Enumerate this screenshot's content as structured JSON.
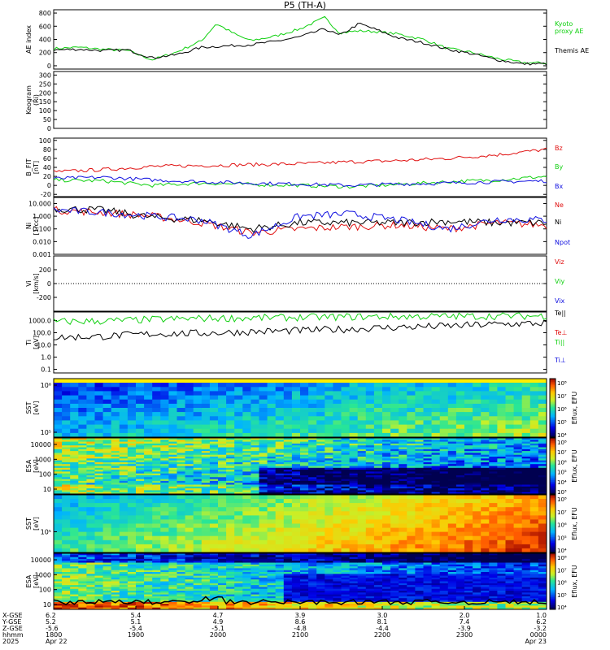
{
  "title": "P5 (TH-A)",
  "colors": {
    "black": "#000000",
    "red": "#e01010",
    "green": "#10d010",
    "blue": "#1010e0"
  },
  "chart_data": [
    {
      "type": "line",
      "ylabel": "AE index",
      "yticks": [
        "0",
        "200",
        "400",
        "600",
        "800"
      ],
      "ylim": [
        -50,
        850
      ],
      "series": [
        {
          "name": "Kyoto proxy AE",
          "color": "green",
          "values": [
            [
              0,
              260
            ],
            [
              0.05,
              280
            ],
            [
              0.1,
              250
            ],
            [
              0.15,
              230
            ],
            [
              0.2,
              90
            ],
            [
              0.25,
              210
            ],
            [
              0.3,
              380
            ],
            [
              0.33,
              640
            ],
            [
              0.37,
              470
            ],
            [
              0.4,
              380
            ],
            [
              0.45,
              450
            ],
            [
              0.5,
              560
            ],
            [
              0.55,
              730
            ],
            [
              0.58,
              500
            ],
            [
              0.62,
              530
            ],
            [
              0.65,
              520
            ],
            [
              0.7,
              480
            ],
            [
              0.75,
              400
            ],
            [
              0.8,
              260
            ],
            [
              0.85,
              200
            ],
            [
              0.9,
              110
            ],
            [
              0.95,
              50
            ],
            [
              1,
              40
            ]
          ]
        },
        {
          "name": "Themis AE",
          "color": "black",
          "values": [
            [
              0,
              240
            ],
            [
              0.05,
              250
            ],
            [
              0.1,
              230
            ],
            [
              0.15,
              240
            ],
            [
              0.2,
              120
            ],
            [
              0.25,
              170
            ],
            [
              0.3,
              280
            ],
            [
              0.35,
              300
            ],
            [
              0.4,
              320
            ],
            [
              0.45,
              370
            ],
            [
              0.5,
              440
            ],
            [
              0.55,
              560
            ],
            [
              0.58,
              460
            ],
            [
              0.62,
              640
            ],
            [
              0.65,
              560
            ],
            [
              0.7,
              420
            ],
            [
              0.75,
              350
            ],
            [
              0.8,
              250
            ],
            [
              0.85,
              180
            ],
            [
              0.9,
              90
            ],
            [
              0.95,
              30
            ],
            [
              1,
              30
            ]
          ]
        }
      ],
      "legend": [
        "Kyoto",
        "proxy AE",
        "Themis AE"
      ]
    },
    {
      "type": "line",
      "ylabel": "Keogram",
      "ylabel2": "(Ri)",
      "yticks": [
        "0",
        "50",
        "100",
        "150",
        "200",
        "250",
        "300"
      ],
      "ylim": [
        0,
        320
      ],
      "series": []
    },
    {
      "type": "line",
      "ylabel": "B_FIT",
      "ylabel2": "[nT]",
      "yticks": [
        "-20",
        "0",
        "20",
        "40",
        "60",
        "80",
        "100"
      ],
      "ylim": [
        -25,
        105
      ],
      "series": [
        {
          "name": "Bz",
          "color": "red",
          "values": [
            [
              0,
              30
            ],
            [
              0.1,
              35
            ],
            [
              0.2,
              42
            ],
            [
              0.3,
              44
            ],
            [
              0.4,
              46
            ],
            [
              0.5,
              48
            ],
            [
              0.6,
              52
            ],
            [
              0.7,
              55
            ],
            [
              0.8,
              60
            ],
            [
              0.9,
              68
            ],
            [
              1,
              80
            ]
          ]
        },
        {
          "name": "By",
          "color": "green",
          "values": [
            [
              0,
              12
            ],
            [
              0.1,
              10
            ],
            [
              0.2,
              0
            ],
            [
              0.3,
              5
            ],
            [
              0.4,
              2
            ],
            [
              0.5,
              0
            ],
            [
              0.6,
              -3
            ],
            [
              0.7,
              2
            ],
            [
              0.8,
              8
            ],
            [
              0.9,
              12
            ],
            [
              1,
              20
            ]
          ]
        },
        {
          "name": "Bx",
          "color": "blue",
          "values": [
            [
              0,
              15
            ],
            [
              0.1,
              18
            ],
            [
              0.2,
              12
            ],
            [
              0.3,
              8
            ],
            [
              0.4,
              5
            ],
            [
              0.5,
              3
            ],
            [
              0.6,
              0
            ],
            [
              0.7,
              3
            ],
            [
              0.8,
              5
            ],
            [
              0.9,
              8
            ],
            [
              1,
              10
            ]
          ]
        }
      ],
      "legend": [
        "Bz",
        "By",
        "Bx"
      ]
    },
    {
      "type": "line",
      "ylabel": "Ni",
      "ylabel2": "[1/cc]",
      "yscale": "log",
      "yticks": [
        "0.001",
        "0.010",
        "0.100",
        "1.000",
        "10.000"
      ],
      "ylim": [
        0.001,
        30
      ],
      "series": [
        {
          "name": "Ne",
          "color": "red",
          "values": [
            [
              0,
              3
            ],
            [
              0.1,
              2
            ],
            [
              0.2,
              1
            ],
            [
              0.3,
              0.3
            ],
            [
              0.4,
              0.05
            ],
            [
              0.5,
              0.1
            ],
            [
              0.6,
              0.15
            ],
            [
              0.7,
              0.2
            ],
            [
              0.8,
              0.1
            ],
            [
              0.9,
              0.3
            ],
            [
              1,
              0.2
            ]
          ]
        },
        {
          "name": "Ni",
          "color": "black",
          "values": [
            [
              0,
              4
            ],
            [
              0.1,
              3
            ],
            [
              0.2,
              0.8
            ],
            [
              0.3,
              0.5
            ],
            [
              0.4,
              0.1
            ],
            [
              0.5,
              0.3
            ],
            [
              0.6,
              0.3
            ],
            [
              0.7,
              0.3
            ],
            [
              0.8,
              0.4
            ],
            [
              0.9,
              0.3
            ],
            [
              1,
              0.3
            ]
          ]
        },
        {
          "name": "Npot",
          "color": "blue",
          "values": [
            [
              0,
              3
            ],
            [
              0.1,
              2
            ],
            [
              0.2,
              1
            ],
            [
              0.3,
              0.5
            ],
            [
              0.4,
              0.03
            ],
            [
              0.5,
              1
            ],
            [
              0.6,
              1.5
            ],
            [
              0.7,
              0.5
            ],
            [
              0.8,
              0.1
            ],
            [
              0.9,
              0.6
            ],
            [
              1,
              0.5
            ]
          ]
        }
      ],
      "legend": [
        "Ne",
        "Ni",
        "Npot"
      ]
    },
    {
      "type": "line",
      "ylabel": "Vi",
      "ylabel2": "[km/s]",
      "yticks": [
        "-200",
        "0",
        "200"
      ],
      "ylim": [
        -400,
        400
      ],
      "series": [],
      "legend": [
        "Viz",
        "Viy",
        "Vix"
      ]
    },
    {
      "type": "line",
      "ylabel": "Ti",
      "ylabel2": "[eV]",
      "yscale": "log",
      "yticks": [
        "0.1",
        "1.0",
        "10.0",
        "100.0",
        "1000.0"
      ],
      "ylim": [
        0.05,
        5000
      ],
      "series": [
        {
          "name": "Te||",
          "color": "black",
          "values": [
            [
              0,
              40
            ],
            [
              0.1,
              50
            ],
            [
              0.2,
              80
            ],
            [
              0.3,
              90
            ],
            [
              0.4,
              120
            ],
            [
              0.5,
              150
            ],
            [
              0.6,
              200
            ],
            [
              0.7,
              280
            ],
            [
              0.8,
              350
            ],
            [
              0.9,
              500
            ],
            [
              1,
              600
            ]
          ]
        },
        {
          "name": "Ti||",
          "color": "green",
          "values": [
            [
              0,
              800
            ],
            [
              0.1,
              900
            ],
            [
              0.2,
              1200
            ],
            [
              0.3,
              1500
            ],
            [
              0.4,
              1600
            ],
            [
              0.5,
              1800
            ],
            [
              0.6,
              2000
            ],
            [
              0.7,
              2100
            ],
            [
              0.8,
              2200
            ],
            [
              0.9,
              2300
            ],
            [
              1,
              2400
            ]
          ]
        }
      ],
      "legend": [
        "Te||",
        "Te⊥",
        "Ti||",
        "Ti⊥"
      ]
    },
    {
      "type": "heatmap",
      "ylabel": "SST",
      "ylabel2": "[eV]",
      "yticks": [
        "10⁵",
        "10⁶"
      ],
      "colorbar_label": "Eflux, EFU",
      "colorbar_ticks": [
        "10⁴",
        "10⁵",
        "10⁶",
        "10⁷",
        "10⁸"
      ]
    },
    {
      "type": "heatmap",
      "ylabel": "ESA",
      "ylabel2": "[eV]",
      "yticks": [
        "10",
        "100",
        "1000",
        "10000"
      ],
      "colorbar_label": "Eflux, EFU",
      "colorbar_ticks": [
        "10³",
        "10⁴",
        "10⁵",
        "10⁶",
        "10⁷",
        "10⁸"
      ]
    },
    {
      "type": "heatmap",
      "ylabel": "SST",
      "ylabel2": "[eV]",
      "yticks": [
        "10⁵"
      ],
      "colorbar_label": "Eflux, EFU",
      "colorbar_ticks": [
        "10⁴",
        "10⁵",
        "10⁶",
        "10⁷",
        "10⁸"
      ]
    },
    {
      "type": "heatmap",
      "ylabel": "ESA",
      "ylabel2": "[eV]",
      "yticks": [
        "10",
        "100",
        "1000",
        "10000"
      ],
      "colorbar_label": "Eflux, EFU",
      "colorbar_ticks": [
        "10⁴",
        "10⁵",
        "10⁶",
        "10⁷",
        "10⁸"
      ]
    }
  ],
  "xaxis": {
    "row_labels": [
      "X-GSE",
      "Y-GSE",
      "Z-GSE",
      "hhmm",
      "2025"
    ],
    "ticks": [
      {
        "x": "6.2",
        "y": "5.2",
        "z": "-5.6",
        "t": "1800",
        "d": "Apr 22"
      },
      {
        "x": "5.4",
        "y": "5.1",
        "z": "-5.4",
        "t": "1900",
        "d": ""
      },
      {
        "x": "4.7",
        "y": "4.9",
        "z": "-5.1",
        "t": "2000",
        "d": ""
      },
      {
        "x": "3.9",
        "y": "8.6",
        "z": "-4.8",
        "t": "2100",
        "d": ""
      },
      {
        "x": "3.0",
        "y": "8.1",
        "z": "-4.4",
        "t": "2200",
        "d": ""
      },
      {
        "x": "2.0",
        "y": "7.4",
        "z": "-3.9",
        "t": "2300",
        "d": ""
      },
      {
        "x": "1.0",
        "y": "6.2",
        "z": "-3.2",
        "t": "0000",
        "d": "Apr 23"
      }
    ]
  }
}
